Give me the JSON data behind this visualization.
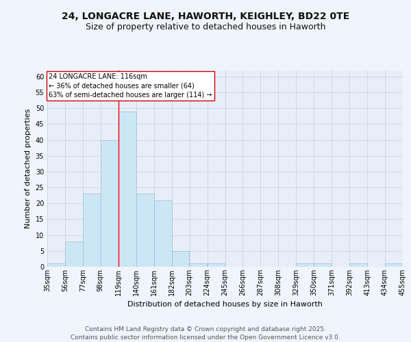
{
  "title_line1": "24, LONGACRE LANE, HAWORTH, KEIGHLEY, BD22 0TE",
  "title_line2": "Size of property relative to detached houses in Haworth",
  "xlabel": "Distribution of detached houses by size in Haworth",
  "ylabel": "Number of detached properties",
  "bar_color": "#cde6f5",
  "bar_edge_color": "#9bbdd4",
  "bin_labels": [
    "35sqm",
    "56sqm",
    "77sqm",
    "98sqm",
    "119sqm",
    "140sqm",
    "161sqm",
    "182sqm",
    "203sqm",
    "224sqm",
    "245sqm",
    "266sqm",
    "287sqm",
    "308sqm",
    "329sqm",
    "350sqm",
    "371sqm",
    "392sqm",
    "413sqm",
    "434sqm",
    "455sqm"
  ],
  "bin_edges": [
    35,
    56,
    77,
    98,
    119,
    140,
    161,
    182,
    203,
    224,
    245,
    266,
    287,
    308,
    329,
    350,
    371,
    392,
    413,
    434,
    455
  ],
  "counts": [
    1,
    8,
    23,
    40,
    49,
    23,
    21,
    5,
    1,
    1,
    0,
    0,
    0,
    0,
    1,
    1,
    0,
    1,
    0,
    1
  ],
  "ylim": [
    0,
    62
  ],
  "yticks": [
    0,
    5,
    10,
    15,
    20,
    25,
    30,
    35,
    40,
    45,
    50,
    55,
    60
  ],
  "red_line_x": 119,
  "annotation_text": "24 LONGACRE LANE: 116sqm\n← 36% of detached houses are smaller (64)\n63% of semi-detached houses are larger (114) →",
  "annotation_box_color": "#ffffff",
  "annotation_box_edge": "#cc0000",
  "grid_color": "#c8d4e8",
  "bg_color": "#e8eef8",
  "fig_bg_color": "#f0f4fc",
  "footer_text": "Contains HM Land Registry data © Crown copyright and database right 2025.\nContains public sector information licensed under the Open Government Licence v3.0.",
  "title_fontsize": 10,
  "subtitle_fontsize": 9,
  "axis_label_fontsize": 8,
  "tick_fontsize": 7,
  "annotation_fontsize": 7,
  "footer_fontsize": 6.5
}
